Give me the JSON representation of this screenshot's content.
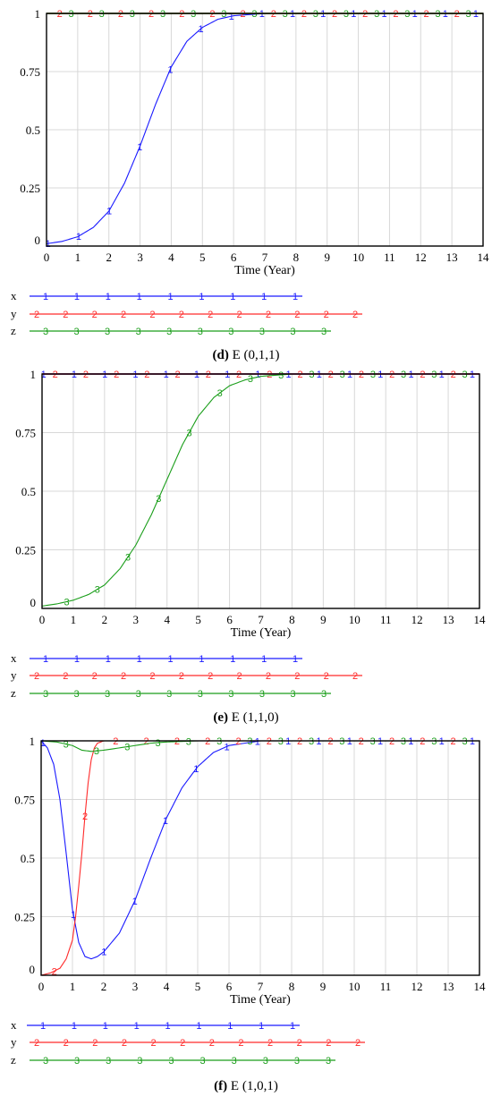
{
  "chart_data": [
    {
      "type": "line",
      "caption": {
        "letter": "d",
        "text": " E (0,1,1)"
      },
      "xlabel": "Time (Year)",
      "xlim": [
        0,
        14
      ],
      "ylim": [
        0,
        1
      ],
      "xticks": [
        "0",
        "1",
        "2",
        "3",
        "4",
        "5",
        "6",
        "7",
        "8",
        "9",
        "10",
        "11",
        "12",
        "13",
        "14"
      ],
      "yticks": [
        "0",
        "0.25",
        "0.5",
        "0.75",
        "1"
      ],
      "grid": true,
      "legend_position": "bottom",
      "colors": {
        "1": "#1a1aff",
        "2": "#ff2a2a",
        "3": "#1a9e1a"
      },
      "series": [
        {
          "name": "x",
          "marker": "1",
          "x": [
            0,
            0.5,
            1,
            1.5,
            2,
            2.5,
            3,
            3.5,
            4,
            4.5,
            5,
            5.5,
            6,
            6.5,
            7,
            8,
            9,
            10,
            11,
            12,
            13,
            14
          ],
          "y": [
            0.01,
            0.02,
            0.04,
            0.08,
            0.15,
            0.27,
            0.43,
            0.61,
            0.77,
            0.88,
            0.94,
            0.975,
            0.99,
            0.995,
            1,
            1,
            1,
            1,
            1,
            1,
            1,
            1
          ]
        },
        {
          "name": "y",
          "marker": "2",
          "x": [
            0,
            14
          ],
          "y": [
            1,
            1
          ]
        },
        {
          "name": "z",
          "marker": "3",
          "x": [
            0,
            14
          ],
          "y": [
            1,
            1
          ]
        }
      ]
    },
    {
      "type": "line",
      "caption": {
        "letter": "e",
        "text": " E (1,1,0)"
      },
      "xlabel": "Time (Year)",
      "xlim": [
        0,
        14
      ],
      "ylim": [
        0,
        1
      ],
      "xticks": [
        "0",
        "1",
        "2",
        "3",
        "4",
        "5",
        "6",
        "7",
        "8",
        "9",
        "10",
        "11",
        "12",
        "13",
        "14"
      ],
      "yticks": [
        "0",
        "0.25",
        "0.5",
        "0.75",
        "1"
      ],
      "grid": true,
      "legend_position": "bottom",
      "colors": {
        "1": "#1a1aff",
        "2": "#ff2a2a",
        "3": "#1a9e1a"
      },
      "series": [
        {
          "name": "x",
          "marker": "1",
          "x": [
            0,
            14
          ],
          "y": [
            1,
            1
          ]
        },
        {
          "name": "y",
          "marker": "2",
          "x": [
            0,
            14
          ],
          "y": [
            1,
            1
          ]
        },
        {
          "name": "z",
          "marker": "3",
          "x": [
            0,
            0.5,
            1,
            1.5,
            2,
            2.5,
            3,
            3.5,
            4,
            4.5,
            5,
            5.5,
            6,
            6.5,
            7,
            7.5,
            8,
            9,
            10,
            11,
            12,
            13,
            14
          ],
          "y": [
            0.01,
            0.02,
            0.035,
            0.06,
            0.1,
            0.17,
            0.27,
            0.4,
            0.55,
            0.7,
            0.82,
            0.9,
            0.95,
            0.975,
            0.99,
            0.995,
            1,
            1,
            1,
            1,
            1,
            1,
            1
          ]
        }
      ]
    },
    {
      "type": "line",
      "caption": {
        "letter": "f",
        "text": " E (1,0,1)"
      },
      "xlabel": "Time (Year)",
      "xlim": [
        0,
        14
      ],
      "ylim": [
        0,
        1
      ],
      "xticks": [
        "0",
        "1",
        "2",
        "3",
        "4",
        "5",
        "6",
        "7",
        "8",
        "9",
        "10",
        "11",
        "12",
        "13",
        "14"
      ],
      "yticks": [
        "0",
        "0.25",
        "0.5",
        "0.75",
        "1"
      ],
      "grid": true,
      "legend_position": "bottom",
      "colors": {
        "1": "#1a1aff",
        "2": "#ff2a2a",
        "3": "#1a9e1a"
      },
      "series": [
        {
          "name": "x",
          "marker": "1",
          "x": [
            0,
            0.2,
            0.4,
            0.6,
            0.8,
            1.0,
            1.2,
            1.4,
            1.6,
            1.8,
            2.0,
            2.5,
            3.0,
            3.5,
            4.0,
            4.5,
            5.0,
            5.5,
            6.0,
            6.5,
            7.0,
            8,
            9,
            10,
            11,
            12,
            13,
            14
          ],
          "y": [
            1.0,
            0.97,
            0.9,
            0.75,
            0.52,
            0.28,
            0.14,
            0.08,
            0.07,
            0.08,
            0.1,
            0.18,
            0.32,
            0.5,
            0.67,
            0.8,
            0.89,
            0.95,
            0.98,
            0.99,
            1,
            1,
            1,
            1,
            1,
            1,
            1,
            1
          ]
        },
        {
          "name": "y",
          "marker": "2",
          "x": [
            0,
            0.3,
            0.6,
            0.8,
            1.0,
            1.1,
            1.2,
            1.3,
            1.4,
            1.5,
            1.6,
            1.7,
            1.8,
            2.0,
            2.5,
            3,
            4,
            5,
            6,
            7,
            8,
            9,
            10,
            11,
            12,
            13,
            14
          ],
          "y": [
            0.0,
            0.01,
            0.03,
            0.07,
            0.15,
            0.25,
            0.38,
            0.52,
            0.68,
            0.82,
            0.92,
            0.97,
            0.99,
            1,
            1,
            1,
            1,
            1,
            1,
            1,
            1,
            1,
            1,
            1,
            1,
            1,
            1
          ]
        },
        {
          "name": "z",
          "marker": "3",
          "x": [
            0,
            0.5,
            1.0,
            1.3,
            1.6,
            2.0,
            2.5,
            3.0,
            3.5,
            4.0,
            5.0,
            6.0,
            7.0,
            8,
            9,
            10,
            11,
            12,
            13,
            14
          ],
          "y": [
            1.0,
            0.995,
            0.98,
            0.96,
            0.955,
            0.96,
            0.97,
            0.98,
            0.99,
            0.995,
            1,
            1,
            1,
            1,
            1,
            1,
            1,
            1,
            1,
            1
          ]
        }
      ]
    }
  ]
}
